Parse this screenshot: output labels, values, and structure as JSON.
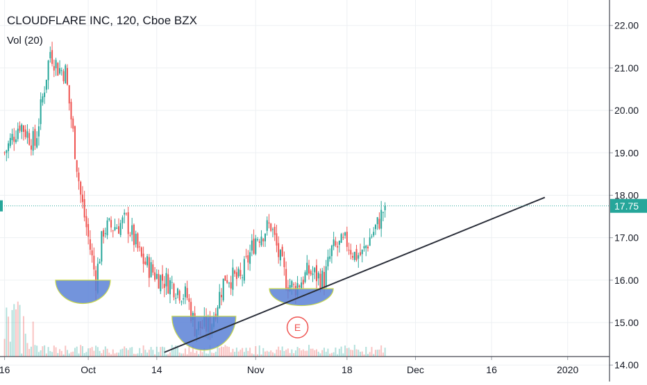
{
  "chart_data": {
    "type": "candlestick",
    "title": "CLOUDFLARE INC, 120, Cboe BZX",
    "indicator": "Vol (20)",
    "y_ticks": [
      "22.00",
      "21.00",
      "20.00",
      "19.00",
      "18.00",
      "17.00",
      "16.00",
      "15.00",
      "14.00"
    ],
    "ylim": [
      14.2,
      22.6
    ],
    "x_ticks": [
      {
        "label": "16",
        "pos": 0
      },
      {
        "label": "Oct",
        "pos": 11
      },
      {
        "label": "14",
        "pos": 20
      },
      {
        "label": "Nov",
        "pos": 33
      },
      {
        "label": "18",
        "pos": 45
      },
      {
        "label": "Dec",
        "pos": 54
      },
      {
        "label": "16",
        "pos": 64
      },
      {
        "label": "2020",
        "pos": 74
      }
    ],
    "last_price": 17.75,
    "last_price_label": "17.75",
    "up_color": "#26a69a",
    "down_color": "#ef5350",
    "price_line_color": "#26a69a",
    "key_prices": [
      {
        "pos": 0,
        "price": 19.0
      },
      {
        "pos": 2,
        "price": 19.7
      },
      {
        "pos": 4,
        "price": 19.2
      },
      {
        "pos": 6,
        "price": 21.4
      },
      {
        "pos": 7,
        "price": 21.0
      },
      {
        "pos": 8,
        "price": 20.9
      },
      {
        "pos": 10,
        "price": 18.0
      },
      {
        "pos": 12,
        "price": 16.0
      },
      {
        "pos": 13,
        "price": 17.2
      },
      {
        "pos": 15,
        "price": 17.3
      },
      {
        "pos": 16,
        "price": 17.4
      },
      {
        "pos": 18,
        "price": 16.5
      },
      {
        "pos": 20,
        "price": 16.1
      },
      {
        "pos": 22,
        "price": 15.9
      },
      {
        "pos": 24,
        "price": 15.6
      },
      {
        "pos": 25,
        "price": 14.9
      },
      {
        "pos": 27,
        "price": 14.9
      },
      {
        "pos": 29,
        "price": 16.1
      },
      {
        "pos": 31,
        "price": 16.0
      },
      {
        "pos": 33,
        "price": 17.0
      },
      {
        "pos": 35,
        "price": 17.3
      },
      {
        "pos": 36,
        "price": 16.6
      },
      {
        "pos": 37,
        "price": 16.0
      },
      {
        "pos": 38,
        "price": 15.8
      },
      {
        "pos": 40,
        "price": 16.2
      },
      {
        "pos": 42,
        "price": 16.0
      },
      {
        "pos": 43,
        "price": 16.7
      },
      {
        "pos": 45,
        "price": 16.9
      },
      {
        "pos": 46,
        "price": 16.6
      },
      {
        "pos": 47,
        "price": 16.6
      },
      {
        "pos": 48,
        "price": 17.0
      },
      {
        "pos": 49,
        "price": 17.3
      },
      {
        "pos": 50,
        "price": 17.75
      }
    ],
    "trendline": [
      {
        "pos": 21,
        "price": 14.3
      },
      {
        "pos": 71,
        "price": 17.95
      }
    ],
    "cup_shapes": [
      {
        "center": 10.3,
        "half_width": 3.6,
        "top": 16.0,
        "bottom": 15.45
      },
      {
        "center": 26.2,
        "half_width": 4.2,
        "top": 15.15,
        "bottom": 14.35
      },
      {
        "center": 39.0,
        "half_width": 4.2,
        "top": 15.8,
        "bottom": 15.4
      }
    ],
    "earnings_marker": {
      "label": "E",
      "pos": 38.5
    },
    "xlim": [
      -0.6,
      79.5
    ],
    "grid": true
  }
}
